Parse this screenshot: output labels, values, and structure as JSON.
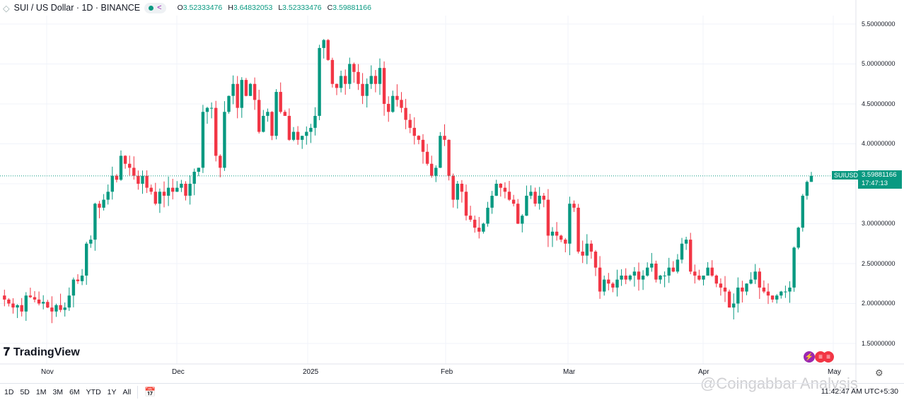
{
  "header": {
    "symbol_title": "SUI / US Dollar · 1D · BINANCE",
    "o_label": "O",
    "o": "3.52333476",
    "h_label": "H",
    "h": "3.64832053",
    "l_label": "L",
    "l": "3.52333476",
    "c_label": "C",
    "c": "3.59881166"
  },
  "price_axis": [
    "5.50000000",
    "5.00000000",
    "4.50000000",
    "4.00000000",
    "3.00000000",
    "2.50000000",
    "2.00000000",
    "1.50000000"
  ],
  "current_price": {
    "symbol": "SUIUSD",
    "price": "3.59881166",
    "countdown": "17:47:13"
  },
  "time_axis": [
    "Nov",
    "Dec",
    "2025",
    "Feb",
    "Mar",
    "Apr",
    "May"
  ],
  "brand": "TradingView",
  "ranges": [
    "1D",
    "5D",
    "1M",
    "3M",
    "6M",
    "YTD",
    "1Y",
    "All"
  ],
  "clock": "11:42:47 AM UTC+5:30",
  "watermark": "@Coingabbar Analysis",
  "colors": {
    "up": "#089981",
    "down": "#f23645"
  },
  "chart_data": {
    "type": "candlestick",
    "interval": "1D",
    "ylim": [
      1.5,
      5.5
    ],
    "last_candle": {
      "open": 3.52333476,
      "high": 3.64832053,
      "low": 3.52333476,
      "close": 3.59881166
    },
    "closes": [
      2.05,
      2.0,
      1.95,
      1.98,
      1.9,
      2.1,
      2.08,
      2.05,
      2.0,
      2.02,
      1.95,
      1.9,
      1.98,
      1.92,
      1.95,
      2.1,
      2.3,
      2.28,
      2.35,
      2.75,
      2.8,
      3.25,
      3.2,
      3.3,
      3.4,
      3.6,
      3.55,
      3.85,
      3.75,
      3.7,
      3.6,
      3.5,
      3.6,
      3.45,
      3.4,
      3.25,
      3.4,
      3.35,
      3.45,
      3.4,
      3.45,
      3.5,
      3.35,
      3.5,
      3.65,
      3.7,
      4.4,
      4.45,
      4.45,
      3.85,
      3.7,
      4.4,
      4.6,
      4.75,
      4.45,
      4.8,
      4.6,
      4.75,
      4.55,
      4.15,
      4.35,
      4.4,
      4.1,
      4.65,
      4.4,
      4.35,
      4.05,
      4.15,
      4.05,
      4.1,
      4.15,
      4.2,
      4.35,
      5.2,
      5.3,
      5.05,
      4.75,
      4.7,
      4.85,
      4.75,
      5.0,
      4.9,
      4.75,
      4.6,
      4.75,
      4.85,
      4.75,
      4.95,
      4.5,
      4.4,
      4.6,
      4.55,
      4.45,
      4.3,
      4.2,
      4.1,
      4.05,
      3.9,
      3.75,
      3.6,
      3.7,
      4.1,
      4.05,
      3.6,
      3.3,
      3.5,
      3.4,
      3.1,
      3.05,
      2.95,
      2.9,
      3.0,
      3.2,
      3.35,
      3.5,
      3.45,
      3.4,
      3.3,
      3.25,
      3.0,
      3.1,
      3.35,
      3.4,
      3.25,
      3.35,
      3.3,
      2.85,
      2.9,
      2.85,
      2.8,
      2.75,
      3.25,
      3.2,
      2.65,
      2.6,
      2.75,
      2.65,
      2.45,
      2.15,
      2.3,
      2.25,
      2.2,
      2.3,
      2.35,
      2.3,
      2.35,
      2.4,
      2.3,
      2.35,
      2.45,
      2.5,
      2.3,
      2.35,
      2.35,
      2.45,
      2.4,
      2.55,
      2.75,
      2.8,
      2.4,
      2.35,
      2.3,
      2.35,
      2.45,
      2.35,
      2.25,
      2.2,
      2.15,
      1.95,
      2.0,
      2.2,
      2.15,
      2.25,
      2.3,
      2.4,
      2.2,
      2.15,
      2.1,
      2.05,
      2.1,
      2.15,
      2.15,
      2.2,
      2.7,
      2.95,
      3.35,
      3.5233,
      3.59881166
    ]
  }
}
